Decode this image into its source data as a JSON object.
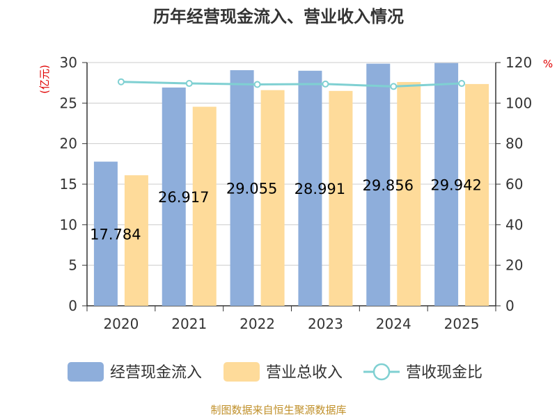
{
  "title": "历年经营现金流入、营业收入情况",
  "source_note": "制图数据来自恒生聚源数据库",
  "colors": {
    "cash_inflow": "#8eaedb",
    "revenue": "#fedb9a",
    "ratio": "#7fd0d2",
    "unit_text": "#e00000",
    "source_text": "#c0902a"
  },
  "chart_data": {
    "type": "bar",
    "title": "历年经营现金流入、营业收入情况",
    "categories": [
      "2020",
      "2021",
      "2022",
      "2023",
      "2024",
      "2025"
    ],
    "left_axis": {
      "unit": "(亿元)",
      "ylim": [
        0,
        30
      ],
      "ticks": [
        "0",
        "5",
        "10",
        "15",
        "20",
        "25",
        "30"
      ]
    },
    "right_axis": {
      "unit": "%",
      "ylim": [
        0,
        120
      ],
      "ticks": [
        "0",
        "20",
        "40",
        "60",
        "80",
        "100",
        "120"
      ]
    },
    "grid": true,
    "legend_position": "bottom",
    "series": [
      {
        "name": "经营现金流入",
        "type": "bar",
        "axis": "left",
        "values": [
          17.78,
          26.92,
          29.06,
          28.99,
          29.86,
          29.94
        ]
      },
      {
        "name": "营业总收入",
        "type": "bar",
        "axis": "left",
        "values": [
          16.1,
          24.55,
          26.6,
          26.5,
          27.6,
          27.35
        ]
      },
      {
        "name": "营收现金比",
        "type": "line",
        "axis": "right",
        "values": [
          110.5,
          109.7,
          109.2,
          109.4,
          108.2,
          109.7
        ]
      }
    ],
    "data_labels": [
      "17.784",
      "26.917",
      "29.055",
      "28.991",
      "29.856",
      "29.942"
    ]
  }
}
